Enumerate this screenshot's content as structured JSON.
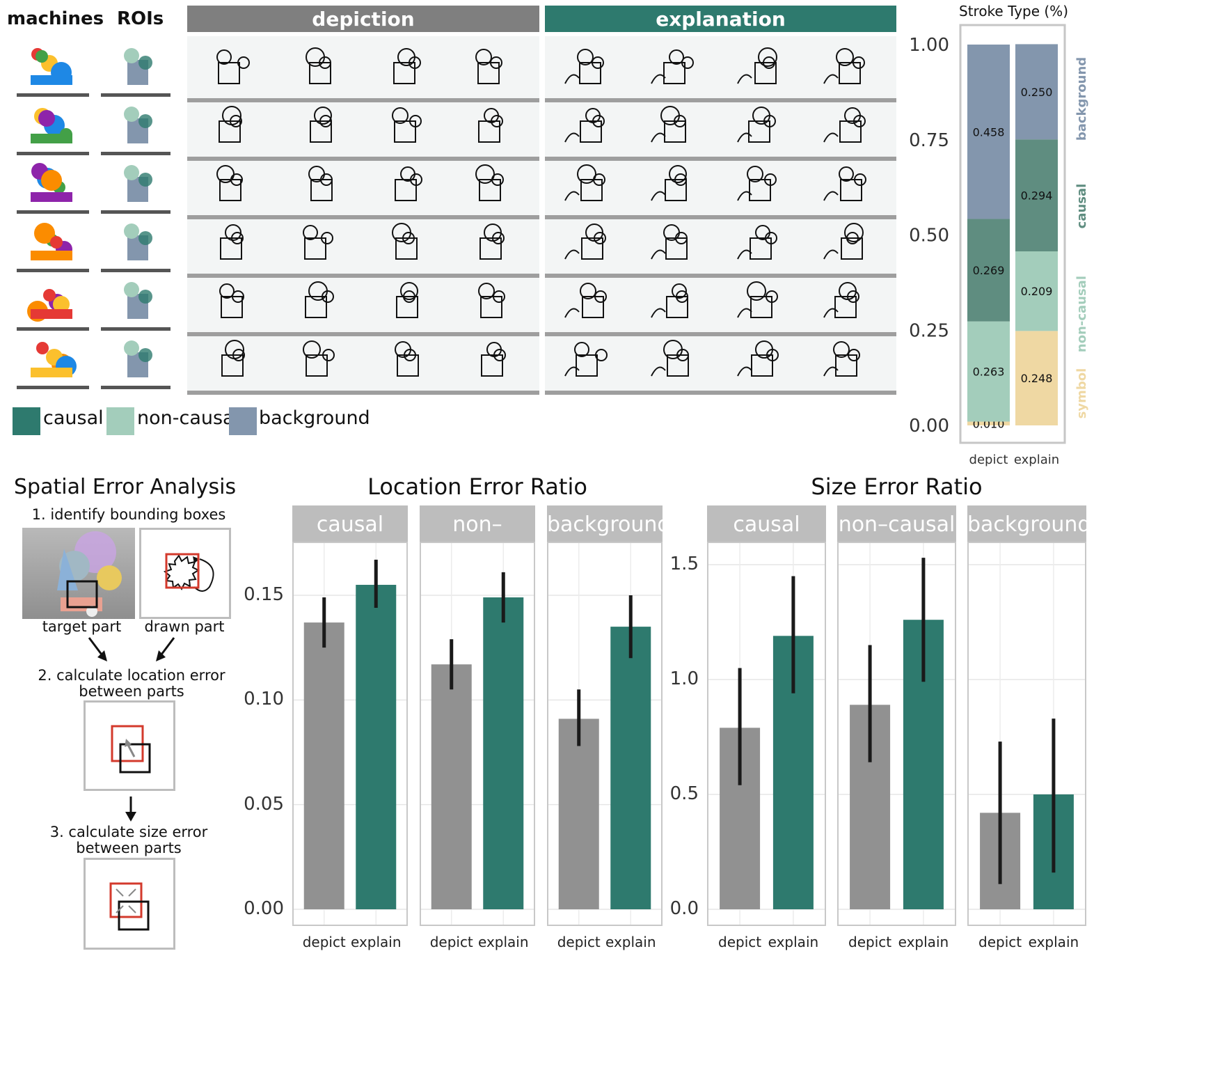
{
  "top": {
    "col_headers": {
      "machines": "machines",
      "rois": "ROIs"
    },
    "bands": {
      "depiction": "depiction",
      "explanation": "explanation"
    },
    "legend": [
      {
        "label": "causal",
        "color": "#2e7a6e"
      },
      {
        "label": "non-causal",
        "color": "#a3cdbb"
      },
      {
        "label": "background",
        "color": "#8396ad"
      }
    ],
    "colors": {
      "depiction_band": "#7f7f7f",
      "explanation_band": "#2e7a6e",
      "machine_silhouette": "#8396ad"
    }
  },
  "stroke_chart": {
    "title": "Stroke Type (%)",
    "yticks": [
      "1.00",
      "0.75",
      "0.50",
      "0.25",
      "0.00"
    ],
    "categories": [
      "depict",
      "explain"
    ],
    "side_labels": [
      {
        "label": "background",
        "color": "#8396ad"
      },
      {
        "label": "causal",
        "color": "#5f8d80"
      },
      {
        "label": "non-causal",
        "color": "#a3cdbb"
      },
      {
        "label": "symbol",
        "color": "#efd8a3"
      }
    ]
  },
  "spatial": {
    "title": "Spatial Error Analysis",
    "step1": "1. identify bounding boxes",
    "target": "target part",
    "drawn": "drawn part",
    "step2_a": "2. calculate location error",
    "step2_b": "between parts",
    "step3_a": "3. calculate size error",
    "step3_b": "between parts"
  },
  "chart_data": [
    {
      "type": "bar",
      "title": "Stroke Type (%)",
      "categories": [
        "depict",
        "explain"
      ],
      "stacked": true,
      "ylim": [
        0,
        1
      ],
      "yticks": [
        0,
        0.25,
        0.5,
        0.75,
        1.0
      ],
      "series": [
        {
          "name": "symbol",
          "values": [
            0.01,
            0.248
          ],
          "color": "#efd8a3"
        },
        {
          "name": "non-causal",
          "values": [
            0.263,
            0.209
          ],
          "color": "#a3cdbb"
        },
        {
          "name": "causal",
          "values": [
            0.269,
            0.294
          ],
          "color": "#5f8d80"
        },
        {
          "name": "background",
          "values": [
            0.458,
            0.25
          ],
          "color": "#8396ad"
        }
      ]
    },
    {
      "type": "bar",
      "title": "Location Error Ratio",
      "facets": [
        "causal",
        "non–causal",
        "background"
      ],
      "categories": [
        "depict",
        "explain"
      ],
      "ylim": [
        0,
        0.19
      ],
      "yticks": [
        "0.00",
        "0.05",
        "0.10",
        "0.15"
      ],
      "values": [
        [
          0.137,
          0.155
        ],
        [
          0.117,
          0.149
        ],
        [
          0.091,
          0.135
        ]
      ],
      "errors": [
        [
          [
            0.125,
            0.149
          ],
          [
            0.144,
            0.167
          ]
        ],
        [
          [
            0.105,
            0.129
          ],
          [
            0.137,
            0.161
          ]
        ],
        [
          [
            0.078,
            0.105
          ],
          [
            0.12,
            0.15
          ]
        ]
      ],
      "colors": [
        "#919191",
        "#2e7a6e"
      ]
    },
    {
      "type": "bar",
      "title": "Size Error Ratio",
      "facets": [
        "causal",
        "non–causal",
        "background"
      ],
      "categories": [
        "depict",
        "explain"
      ],
      "ylim": [
        0,
        1.75
      ],
      "yticks": [
        "0.0",
        "0.5",
        "1.0",
        "1.5"
      ],
      "values": [
        [
          0.79,
          1.19
        ],
        [
          0.89,
          1.26
        ],
        [
          0.42,
          0.5
        ]
      ],
      "errors": [
        [
          [
            0.54,
            1.05
          ],
          [
            0.94,
            1.45
          ]
        ],
        [
          [
            0.64,
            1.15
          ],
          [
            0.99,
            1.53
          ]
        ],
        [
          [
            0.11,
            0.73
          ],
          [
            0.16,
            0.83
          ]
        ]
      ],
      "colors": [
        "#919191",
        "#2e7a6e"
      ]
    }
  ]
}
